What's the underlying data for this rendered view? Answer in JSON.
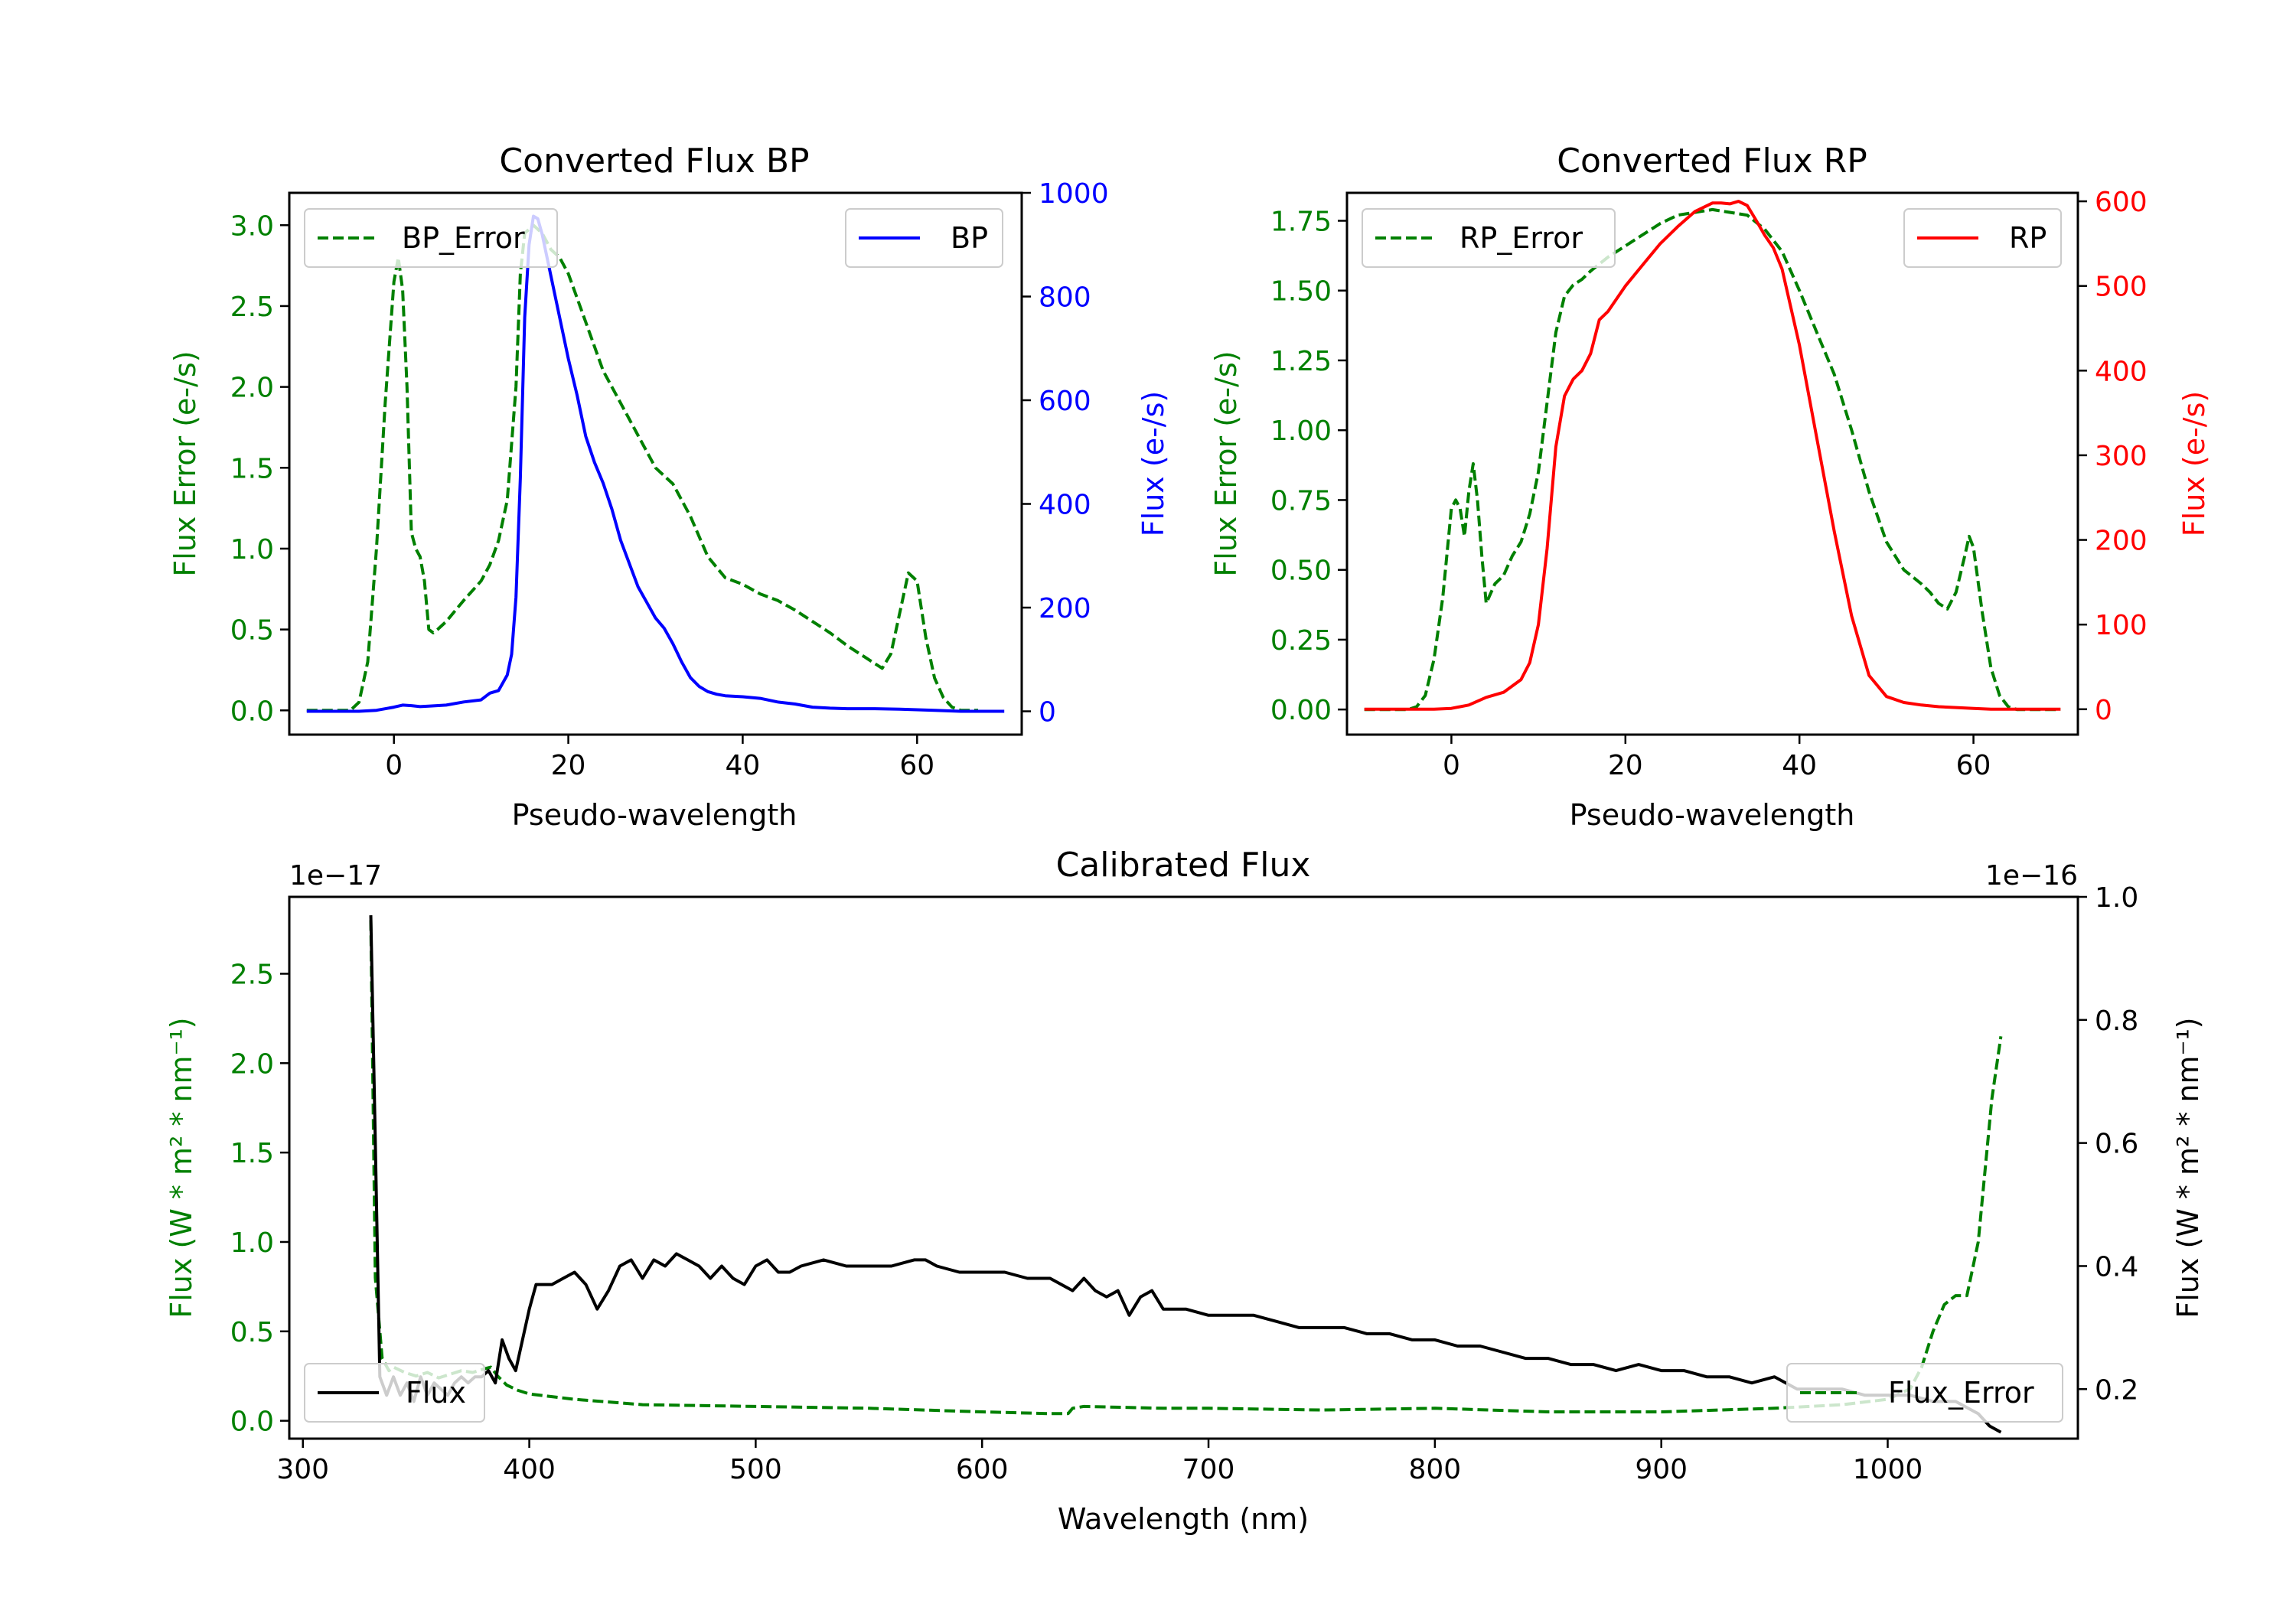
{
  "chart_data": [
    {
      "id": "bp",
      "type": "line",
      "title": "Converted Flux BP",
      "xlabel": "Pseudo-wavelength",
      "ylabel_left": "Flux Error (e-/s)",
      "ylabel_right": "Flux (e-/s)",
      "xlim": [
        -12,
        72
      ],
      "ylim_left": [
        -0.15,
        3.2
      ],
      "ylim_right": [
        -45,
        1000
      ],
      "xticks": [
        0,
        20,
        40,
        60
      ],
      "yticks_left": [
        0.0,
        0.5,
        1.0,
        1.5,
        2.0,
        2.5,
        3.0
      ],
      "yticks_left_labels": [
        "0.0",
        "0.5",
        "1.0",
        "1.5",
        "2.0",
        "2.5",
        "3.0"
      ],
      "yticks_right": [
        0,
        200,
        400,
        600,
        800,
        1000
      ],
      "yticks_right_labels": [
        "0",
        "200",
        "400",
        "600",
        "800",
        "1000"
      ],
      "left_color": "#008000",
      "right_color": "#0000ff",
      "legend_left": "BP_Error",
      "legend_right": "BP",
      "series": [
        {
          "name": "BP_Error",
          "axis": "left",
          "style": "dashed",
          "color": "#008000",
          "x": [
            -10,
            -5,
            -4,
            -3,
            -2,
            -1,
            0,
            0.5,
            1,
            1.5,
            2,
            2.5,
            3,
            3.5,
            4,
            4.5,
            5,
            6,
            8,
            10,
            11,
            12,
            13,
            14,
            14.5,
            15,
            16,
            17,
            18,
            19,
            20,
            22,
            24,
            26,
            28,
            30,
            32,
            34,
            36,
            38,
            40,
            42,
            44,
            46,
            48,
            50,
            52,
            54,
            56,
            57,
            58,
            59,
            60,
            61,
            62,
            63,
            64,
            65,
            66,
            67
          ],
          "values": [
            0,
            0,
            0.05,
            0.3,
            1.0,
            1.9,
            2.65,
            2.8,
            2.6,
            2.0,
            1.1,
            1.0,
            0.95,
            0.8,
            0.5,
            0.48,
            0.5,
            0.55,
            0.68,
            0.8,
            0.9,
            1.05,
            1.3,
            2.0,
            2.7,
            2.95,
            3.0,
            2.95,
            2.85,
            2.8,
            2.7,
            2.4,
            2.1,
            1.9,
            1.7,
            1.5,
            1.4,
            1.2,
            0.95,
            0.82,
            0.78,
            0.72,
            0.68,
            0.62,
            0.55,
            0.48,
            0.4,
            0.33,
            0.26,
            0.35,
            0.6,
            0.85,
            0.8,
            0.45,
            0.2,
            0.08,
            0.02,
            0,
            0,
            0
          ]
        },
        {
          "name": "BP",
          "axis": "right",
          "style": "solid",
          "color": "#0000ff",
          "x": [
            -10,
            -4,
            -2,
            0,
            1,
            2,
            3,
            4,
            6,
            8,
            10,
            11,
            12,
            13,
            13.5,
            14,
            14.5,
            15,
            15.5,
            16,
            16.5,
            17,
            17.5,
            18,
            19,
            20,
            21,
            22,
            23,
            24,
            25,
            26,
            27,
            28,
            29,
            30,
            31,
            32,
            33,
            34,
            35,
            36,
            37,
            38,
            39,
            40,
            42,
            44,
            46,
            48,
            50,
            52,
            55,
            58,
            60,
            62,
            65,
            70
          ],
          "values": [
            0,
            0,
            2,
            8,
            12,
            11,
            9,
            10,
            12,
            18,
            22,
            35,
            40,
            70,
            110,
            220,
            450,
            760,
            900,
            955,
            950,
            920,
            880,
            840,
            760,
            680,
            610,
            530,
            480,
            440,
            390,
            330,
            285,
            240,
            210,
            180,
            160,
            130,
            95,
            65,
            48,
            38,
            33,
            30,
            29,
            28,
            25,
            18,
            14,
            8,
            6,
            5,
            5,
            4,
            3,
            2,
            0,
            0
          ]
        }
      ]
    },
    {
      "id": "rp",
      "type": "line",
      "title": "Converted Flux RP",
      "xlabel": "Pseudo-wavelength",
      "ylabel_left": "Flux Error (e-/s)",
      "ylabel_right": "Flux (e-/s)",
      "xlim": [
        -12,
        72
      ],
      "ylim_left": [
        -0.09,
        1.85
      ],
      "ylim_right": [
        -30,
        610
      ],
      "xticks": [
        0,
        20,
        40,
        60
      ],
      "yticks_left": [
        0.0,
        0.25,
        0.5,
        0.75,
        1.0,
        1.25,
        1.5,
        1.75
      ],
      "yticks_left_labels": [
        "0.00",
        "0.25",
        "0.50",
        "0.75",
        "1.00",
        "1.25",
        "1.50",
        "1.75"
      ],
      "yticks_right": [
        0,
        100,
        200,
        300,
        400,
        500,
        600
      ],
      "yticks_right_labels": [
        "0",
        "100",
        "200",
        "300",
        "400",
        "500",
        "600"
      ],
      "left_color": "#008000",
      "right_color": "#ff0000",
      "legend_left": "RP_Error",
      "legend_right": "RP",
      "series": [
        {
          "name": "RP_Error",
          "axis": "left",
          "style": "dashed",
          "color": "#008000",
          "x": [
            -10,
            -5,
            -4,
            -3,
            -2,
            -1,
            0,
            0.5,
            1,
            1.5,
            2,
            2.5,
            3,
            3.5,
            4,
            5,
            6,
            7,
            8,
            9,
            10,
            11,
            12,
            13,
            14,
            15,
            16,
            18,
            20,
            22,
            24,
            26,
            28,
            30,
            32,
            34,
            36,
            38,
            40,
            42,
            44,
            46,
            48,
            50,
            52,
            54,
            55,
            56,
            57,
            58,
            59,
            59.5,
            60,
            61,
            62,
            63,
            64,
            65,
            70
          ],
          "values": [
            0,
            0,
            0.01,
            0.05,
            0.18,
            0.4,
            0.72,
            0.75,
            0.72,
            0.62,
            0.78,
            0.88,
            0.75,
            0.55,
            0.38,
            0.45,
            0.48,
            0.55,
            0.6,
            0.7,
            0.85,
            1.1,
            1.35,
            1.48,
            1.52,
            1.54,
            1.57,
            1.62,
            1.66,
            1.7,
            1.74,
            1.77,
            1.78,
            1.79,
            1.78,
            1.77,
            1.72,
            1.64,
            1.5,
            1.35,
            1.2,
            1.0,
            0.78,
            0.6,
            0.5,
            0.45,
            0.42,
            0.38,
            0.36,
            0.42,
            0.55,
            0.62,
            0.58,
            0.35,
            0.15,
            0.05,
            0.01,
            0,
            0
          ]
        },
        {
          "name": "RP",
          "axis": "right",
          "style": "solid",
          "color": "#ff0000",
          "x": [
            -10,
            -4,
            -2,
            0,
            2,
            4,
            6,
            8,
            9,
            10,
            11,
            12,
            13,
            14,
            15,
            16,
            17,
            18,
            20,
            22,
            24,
            26,
            28,
            30,
            31,
            32,
            33,
            34,
            35,
            36,
            37,
            38,
            40,
            42,
            44,
            46,
            48,
            50,
            52,
            54,
            56,
            58,
            60,
            62,
            65,
            70
          ],
          "values": [
            0,
            0,
            0,
            1,
            5,
            14,
            20,
            35,
            55,
            100,
            190,
            310,
            370,
            390,
            400,
            420,
            460,
            470,
            500,
            525,
            550,
            570,
            588,
            598,
            598,
            597,
            600,
            595,
            578,
            560,
            545,
            520,
            430,
            320,
            210,
            110,
            40,
            15,
            8,
            5,
            3,
            2,
            1,
            0,
            0,
            0
          ]
        }
      ]
    },
    {
      "id": "cal",
      "type": "line",
      "title": "Calibrated Flux",
      "xlabel": "Wavelength (nm)",
      "ylabel_left": "Flux (W * m² * nm⁻¹)",
      "ylabel_right": "Flux (W * m² * nm⁻¹)",
      "left_scale_label": "1e−17",
      "right_scale_label": "1e−16",
      "xlim": [
        294,
        1084
      ],
      "ylim_left": [
        -0.1,
        2.93
      ],
      "ylim_right": [
        0.1195,
        1.0
      ],
      "xticks": [
        300,
        400,
        500,
        600,
        700,
        800,
        900,
        1000
      ],
      "yticks_left": [
        0.0,
        0.5,
        1.0,
        1.5,
        2.0,
        2.5
      ],
      "yticks_left_labels": [
        "0.0",
        "0.5",
        "1.0",
        "1.5",
        "2.0",
        "2.5"
      ],
      "yticks_right": [
        0.2,
        0.4,
        0.6,
        0.8,
        1.0
      ],
      "yticks_right_labels": [
        "0.2",
        "0.4",
        "0.6",
        "0.8",
        "1.0"
      ],
      "left_color": "#008000",
      "right_color": "#000000",
      "legend_left": "Flux",
      "legend_right": "Flux_Error",
      "series": [
        {
          "name": "Flux_Error",
          "axis": "left",
          "style": "dashed",
          "color": "#008000",
          "x": [
            330,
            332,
            335,
            338,
            340,
            345,
            350,
            355,
            360,
            365,
            370,
            375,
            380,
            383,
            386,
            390,
            395,
            400,
            420,
            450,
            500,
            550,
            600,
            630,
            638,
            640,
            645,
            680,
            700,
            750,
            800,
            850,
            900,
            950,
            980,
            1000,
            1010,
            1015,
            1020,
            1025,
            1030,
            1035,
            1040,
            1043,
            1046,
            1050
          ],
          "values": [
            2.8,
            0.8,
            0.35,
            0.28,
            0.3,
            0.27,
            0.25,
            0.27,
            0.24,
            0.26,
            0.28,
            0.27,
            0.29,
            0.3,
            0.25,
            0.2,
            0.17,
            0.15,
            0.12,
            0.09,
            0.08,
            0.07,
            0.05,
            0.04,
            0.04,
            0.07,
            0.08,
            0.07,
            0.07,
            0.06,
            0.07,
            0.05,
            0.05,
            0.07,
            0.09,
            0.12,
            0.18,
            0.3,
            0.5,
            0.65,
            0.7,
            0.7,
            1.0,
            1.4,
            1.8,
            2.15
          ]
        },
        {
          "name": "Flux",
          "axis": "right",
          "style": "solid",
          "color": "#000000",
          "x": [
            330,
            332,
            334,
            337,
            340,
            343,
            346,
            349,
            352,
            355,
            358,
            361,
            364,
            367,
            370,
            373,
            376,
            379,
            382,
            385,
            388,
            391,
            394,
            397,
            400,
            403,
            406,
            410,
            415,
            420,
            425,
            430,
            435,
            440,
            445,
            450,
            455,
            460,
            465,
            470,
            475,
            480,
            485,
            490,
            495,
            500,
            505,
            510,
            515,
            520,
            530,
            540,
            550,
            560,
            570,
            575,
            580,
            590,
            600,
            610,
            620,
            630,
            640,
            645,
            650,
            655,
            660,
            665,
            670,
            675,
            680,
            690,
            700,
            710,
            720,
            730,
            740,
            750,
            760,
            770,
            780,
            790,
            800,
            810,
            820,
            830,
            840,
            850,
            860,
            870,
            880,
            890,
            900,
            910,
            920,
            930,
            940,
            950,
            960,
            970,
            980,
            990,
            1000,
            1010,
            1020,
            1030,
            1035,
            1040,
            1045,
            1050
          ],
          "values": [
            0.97,
            0.6,
            0.22,
            0.19,
            0.22,
            0.19,
            0.21,
            0.18,
            0.22,
            0.19,
            0.21,
            0.2,
            0.19,
            0.21,
            0.22,
            0.21,
            0.22,
            0.22,
            0.23,
            0.21,
            0.28,
            0.25,
            0.23,
            0.28,
            0.33,
            0.37,
            0.37,
            0.37,
            0.38,
            0.39,
            0.37,
            0.33,
            0.36,
            0.4,
            0.41,
            0.38,
            0.41,
            0.4,
            0.42,
            0.41,
            0.4,
            0.38,
            0.4,
            0.38,
            0.37,
            0.4,
            0.41,
            0.39,
            0.39,
            0.4,
            0.41,
            0.4,
            0.4,
            0.4,
            0.41,
            0.41,
            0.4,
            0.39,
            0.39,
            0.39,
            0.38,
            0.38,
            0.36,
            0.38,
            0.36,
            0.35,
            0.36,
            0.32,
            0.35,
            0.36,
            0.33,
            0.33,
            0.32,
            0.32,
            0.32,
            0.31,
            0.3,
            0.3,
            0.3,
            0.29,
            0.29,
            0.28,
            0.28,
            0.27,
            0.27,
            0.26,
            0.25,
            0.25,
            0.24,
            0.24,
            0.23,
            0.24,
            0.23,
            0.23,
            0.22,
            0.22,
            0.21,
            0.22,
            0.2,
            0.2,
            0.2,
            0.19,
            0.19,
            0.19,
            0.18,
            0.18,
            0.17,
            0.16,
            0.14,
            0.13
          ]
        }
      ]
    }
  ]
}
